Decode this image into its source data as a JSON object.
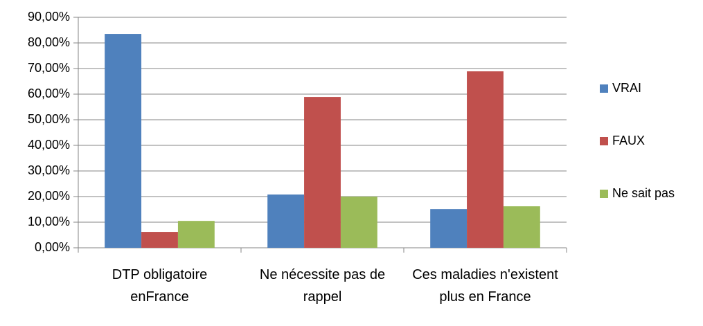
{
  "chart_data": {
    "type": "bar",
    "categories": [
      "DTP obligatoire enFrance",
      "Ne nécessite pas de rappel",
      "Ces maladies n'existent plus en France"
    ],
    "series": [
      {
        "name": "VRAI",
        "color": "#4f81bd",
        "values": [
          83.5,
          20.8,
          15.1
        ]
      },
      {
        "name": "FAUX",
        "color": "#c0504d",
        "values": [
          6.2,
          58.9,
          68.9
        ]
      },
      {
        "name": "Ne sait pas",
        "color": "#9bbb59",
        "values": [
          10.5,
          20.0,
          16.2
        ]
      }
    ],
    "ylim": [
      0,
      90
    ],
    "yticks": [
      {
        "value": 0,
        "label": "0,00%"
      },
      {
        "value": 10,
        "label": "10,00%"
      },
      {
        "value": 20,
        "label": "20,00%"
      },
      {
        "value": 30,
        "label": "30,00%"
      },
      {
        "value": 40,
        "label": "40,00%"
      },
      {
        "value": 50,
        "label": "50,00%"
      },
      {
        "value": 60,
        "label": "60,00%"
      },
      {
        "value": 70,
        "label": "70,00%"
      },
      {
        "value": 80,
        "label": "80,00%"
      },
      {
        "value": 90,
        "label": "90,00%"
      }
    ],
    "grid": true,
    "legend": "right"
  }
}
